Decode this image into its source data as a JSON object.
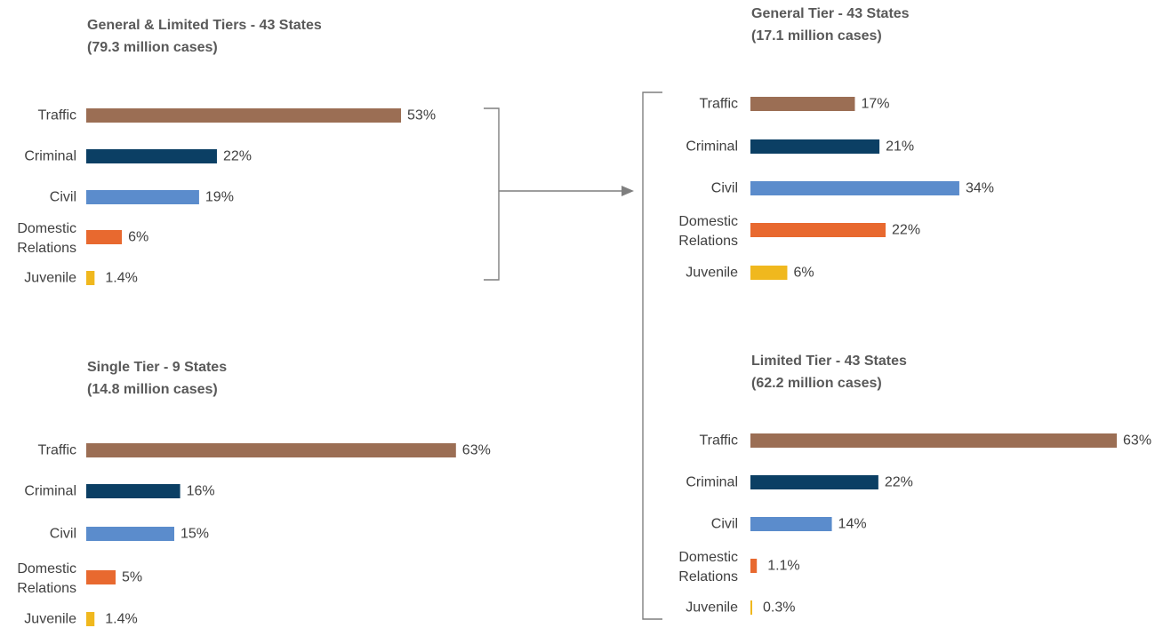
{
  "chart_data": [
    {
      "type": "bar",
      "orientation": "horizontal",
      "title": [
        "General & Limited Tiers - 43 States",
        "(79.3 million cases)"
      ],
      "categories": [
        "Traffic",
        "Criminal",
        "Civil",
        "Domestic Relations",
        "Juvenile"
      ],
      "values": [
        53,
        22,
        19,
        6,
        1.4
      ],
      "value_labels": [
        "53%",
        "22%",
        "19%",
        "6%",
        "1.4%"
      ],
      "colors": [
        "#9b6e54",
        "#0b3f64",
        "#5b8ccc",
        "#e8692f",
        "#f0b81e"
      ],
      "grid": false,
      "legend": "none"
    },
    {
      "type": "bar",
      "orientation": "horizontal",
      "title": [
        "Single Tier - 9 States",
        "(14.8 million cases)"
      ],
      "categories": [
        "Traffic",
        "Criminal",
        "Civil",
        "Domestic Relations",
        "Juvenile"
      ],
      "values": [
        63,
        16,
        15,
        5,
        1.4
      ],
      "value_labels": [
        "63%",
        "16%",
        "15%",
        "5%",
        "1.4%"
      ],
      "colors": [
        "#9b6e54",
        "#0b3f64",
        "#5b8ccc",
        "#e8692f",
        "#f0b81e"
      ],
      "grid": false,
      "legend": "none"
    },
    {
      "type": "bar",
      "orientation": "horizontal",
      "title": [
        "General Tier - 43 States",
        "(17.1 million cases)"
      ],
      "categories": [
        "Traffic",
        "Criminal",
        "Civil",
        "Domestic Relations",
        "Juvenile"
      ],
      "values": [
        17,
        21,
        34,
        22,
        6
      ],
      "value_labels": [
        "17%",
        "21%",
        "34%",
        "22%",
        "6%"
      ],
      "colors": [
        "#9b6e54",
        "#0b3f64",
        "#5b8ccc",
        "#e8692f",
        "#f0b81e"
      ],
      "grid": false,
      "legend": "none"
    },
    {
      "type": "bar",
      "orientation": "horizontal",
      "title": [
        "Limited Tier - 43 States",
        "(62.2 million cases)"
      ],
      "categories": [
        "Traffic",
        "Criminal",
        "Civil",
        "Domestic Relations",
        "Juvenile"
      ],
      "values": [
        63,
        22,
        14,
        1.1,
        0.3
      ],
      "value_labels": [
        "63%",
        "22%",
        "14%",
        "1.1%",
        "0.3%"
      ],
      "colors": [
        "#9b6e54",
        "#0b3f64",
        "#5b8ccc",
        "#e8692f",
        "#f0b81e"
      ],
      "grid": false,
      "legend": "none"
    }
  ]
}
